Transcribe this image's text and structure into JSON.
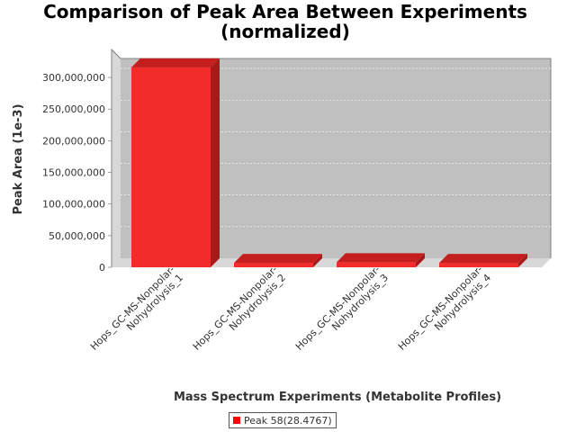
{
  "chart_data": {
    "type": "bar",
    "title_line1": "Comparison of Peak Area Between Experiments",
    "title_line2": "(normalized)",
    "xlabel": "Mass Spectrum Experiments (Metabolite Profiles)",
    "ylabel": "Peak Area (1e-3)",
    "categories": [
      [
        "Hops_GC-MS-Nonpolar-",
        "Nohydrolysis_1"
      ],
      [
        "Hops_GC-MS-Nonpolar-",
        "Nohydrolysis_2"
      ],
      [
        "Hops_GC-MS-Nonpolar-",
        "Nohydrolysis_3"
      ],
      [
        "Hops_GC-MS-Nonpolar-",
        "Nohydrolysis_4"
      ]
    ],
    "series": [
      {
        "name": "Peak 58(28.4767)",
        "values": [
          316000000,
          7000000,
          8000000,
          7000000
        ]
      }
    ],
    "ylim": [
      0,
      330000000
    ],
    "yticks": [
      0,
      50000000,
      100000000,
      150000000,
      200000000,
      250000000,
      300000000
    ],
    "ytick_labels": [
      "0",
      "50,000,000",
      "100,000,000",
      "150,000,000",
      "200,000,000",
      "250,000,000",
      "300,000,000"
    ],
    "grid": true,
    "legend_position": "bottom",
    "colors": {
      "bar_front": "#f22b2b",
      "bar_top": "#c41e1e",
      "bar_side": "#a81a1a",
      "plot_back": "#c0c0c0",
      "plot_wall": "#d8d8d8",
      "legend_swatch": "#ff0000"
    }
  }
}
